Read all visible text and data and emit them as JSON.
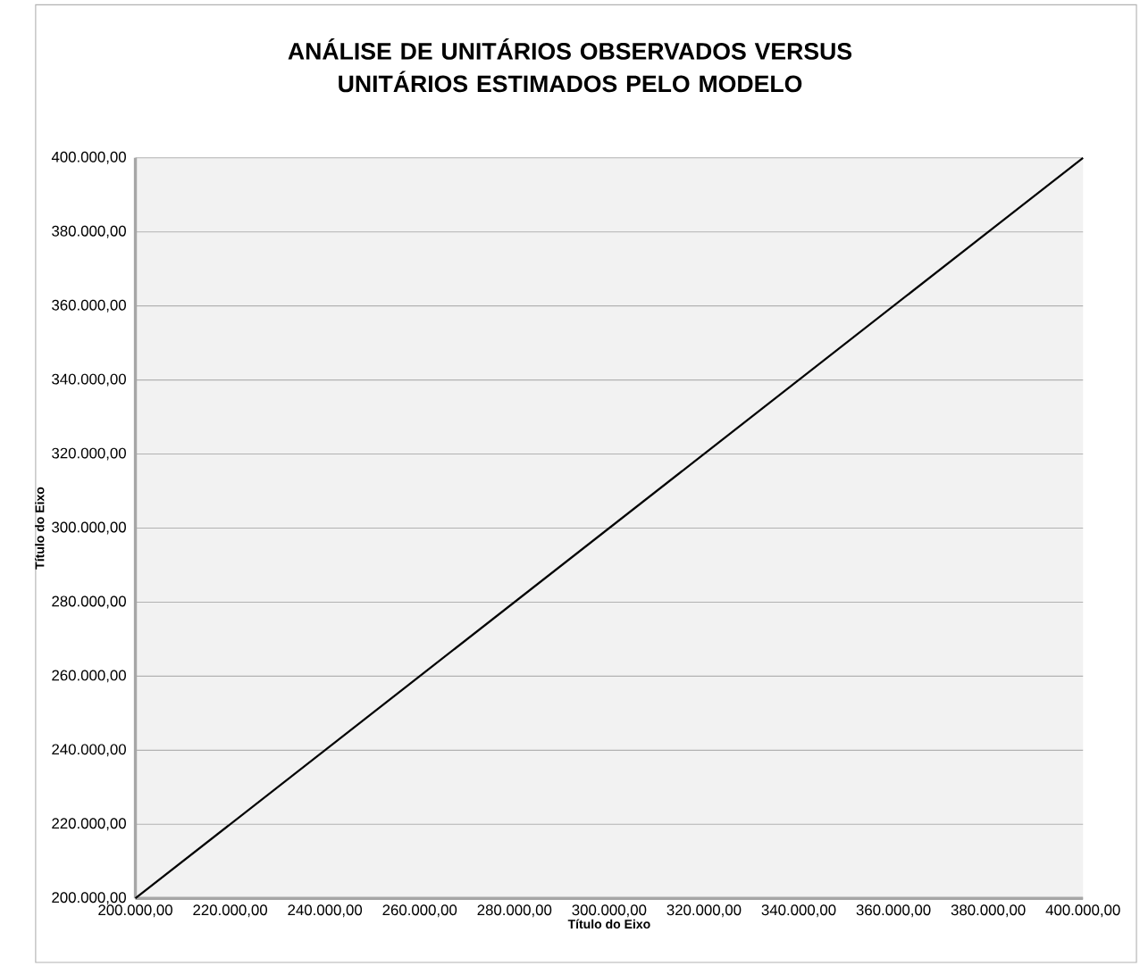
{
  "chart_data": {
    "type": "line",
    "title": "ANÁLISE DE UNITÁRIOS OBSERVADOS VERSUS UNITÁRIOS ESTIMADOS PELO MODELO",
    "xlabel": "Título do Eixo",
    "ylabel": "Título do Eixo",
    "x": [
      200000,
      400000
    ],
    "series": [
      {
        "color": "#000000",
        "values": [
          200000,
          400000
        ]
      }
    ],
    "xlim": [
      200000,
      400000
    ],
    "ylim": [
      200000,
      400000
    ],
    "xticks": [
      {
        "value": 200000,
        "label": "200.000,00"
      },
      {
        "value": 220000,
        "label": "220.000,00"
      },
      {
        "value": 240000,
        "label": "240.000,00"
      },
      {
        "value": 260000,
        "label": "260.000,00"
      },
      {
        "value": 280000,
        "label": "280.000,00"
      },
      {
        "value": 300000,
        "label": "300.000,00"
      },
      {
        "value": 320000,
        "label": "320.000,00"
      },
      {
        "value": 340000,
        "label": "340.000,00"
      },
      {
        "value": 360000,
        "label": "360.000,00"
      },
      {
        "value": 380000,
        "label": "380.000,00"
      },
      {
        "value": 400000,
        "label": "400.000,00"
      }
    ],
    "yticks": [
      {
        "value": 200000,
        "label": "200.000,00"
      },
      {
        "value": 220000,
        "label": "220.000,00"
      },
      {
        "value": 240000,
        "label": "240.000,00"
      },
      {
        "value": 260000,
        "label": "260.000,00"
      },
      {
        "value": 280000,
        "label": "280.000,00"
      },
      {
        "value": 300000,
        "label": "300.000,00"
      },
      {
        "value": 320000,
        "label": "320.000,00"
      },
      {
        "value": 340000,
        "label": "340.000,00"
      },
      {
        "value": 360000,
        "label": "360.000,00"
      },
      {
        "value": 380000,
        "label": "380.000,00"
      },
      {
        "value": 400000,
        "label": "400.000,00"
      }
    ],
    "grid": "y",
    "marker": "none",
    "line_style": "solid"
  }
}
